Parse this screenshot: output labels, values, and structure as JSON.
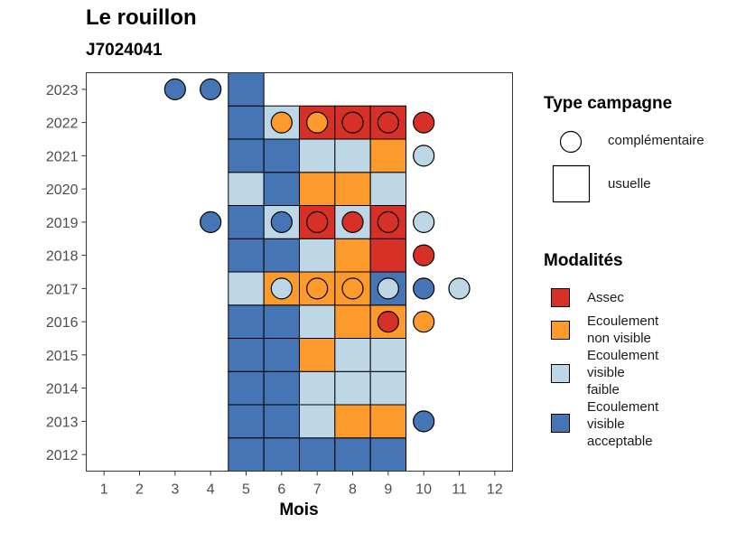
{
  "title": "Le rouillon",
  "subtitle": "J7024041",
  "chart_data": {
    "type": "heatmap",
    "xlabel": "Mois",
    "ylabel": "",
    "x_ticks": [
      1,
      2,
      3,
      4,
      5,
      6,
      7,
      8,
      9,
      10,
      11,
      12
    ],
    "y_ticks": [
      2012,
      2013,
      2014,
      2015,
      2016,
      2017,
      2018,
      2019,
      2020,
      2021,
      2022,
      2023
    ],
    "xlim": [
      0.5,
      12.5
    ],
    "ylim": [
      2011.5,
      2023.5
    ],
    "grid": false,
    "legend_position": "right",
    "modalities": [
      {
        "key": "assec",
        "label_lines": [
          "Assec"
        ],
        "color": "#d73027"
      },
      {
        "key": "ecoulement_non_visible",
        "label_lines": [
          "Ecoulement",
          "non visible"
        ],
        "color": "#fc9a2c"
      },
      {
        "key": "ecoulement_visible_faible",
        "label_lines": [
          "Ecoulement",
          "visible",
          "faible"
        ],
        "color": "#bdd7e7"
      },
      {
        "key": "ecoulement_visible_acceptable",
        "label_lines": [
          "Ecoulement",
          "visible",
          "acceptable"
        ],
        "color": "#4575b4"
      }
    ],
    "type_campagne": [
      {
        "key": "complementaire",
        "label": "complémentaire",
        "shape": "circle"
      },
      {
        "key": "usuelle",
        "label": "usuelle",
        "shape": "square"
      }
    ],
    "usuelle": [
      {
        "year": 2012,
        "month": 5,
        "modality": "ecoulement_visible_acceptable"
      },
      {
        "year": 2012,
        "month": 6,
        "modality": "ecoulement_visible_acceptable"
      },
      {
        "year": 2012,
        "month": 7,
        "modality": "ecoulement_visible_acceptable"
      },
      {
        "year": 2012,
        "month": 8,
        "modality": "ecoulement_visible_acceptable"
      },
      {
        "year": 2012,
        "month": 9,
        "modality": "ecoulement_visible_acceptable"
      },
      {
        "year": 2013,
        "month": 5,
        "modality": "ecoulement_visible_acceptable"
      },
      {
        "year": 2013,
        "month": 6,
        "modality": "ecoulement_visible_acceptable"
      },
      {
        "year": 2013,
        "month": 7,
        "modality": "ecoulement_visible_faible"
      },
      {
        "year": 2013,
        "month": 8,
        "modality": "ecoulement_non_visible"
      },
      {
        "year": 2013,
        "month": 9,
        "modality": "ecoulement_non_visible"
      },
      {
        "year": 2014,
        "month": 5,
        "modality": "ecoulement_visible_acceptable"
      },
      {
        "year": 2014,
        "month": 6,
        "modality": "ecoulement_visible_acceptable"
      },
      {
        "year": 2014,
        "month": 7,
        "modality": "ecoulement_visible_faible"
      },
      {
        "year": 2014,
        "month": 8,
        "modality": "ecoulement_visible_faible"
      },
      {
        "year": 2014,
        "month": 9,
        "modality": "ecoulement_visible_faible"
      },
      {
        "year": 2015,
        "month": 5,
        "modality": "ecoulement_visible_acceptable"
      },
      {
        "year": 2015,
        "month": 6,
        "modality": "ecoulement_visible_acceptable"
      },
      {
        "year": 2015,
        "month": 7,
        "modality": "ecoulement_non_visible"
      },
      {
        "year": 2015,
        "month": 8,
        "modality": "ecoulement_visible_faible"
      },
      {
        "year": 2015,
        "month": 9,
        "modality": "ecoulement_visible_faible"
      },
      {
        "year": 2016,
        "month": 5,
        "modality": "ecoulement_visible_acceptable"
      },
      {
        "year": 2016,
        "month": 6,
        "modality": "ecoulement_visible_acceptable"
      },
      {
        "year": 2016,
        "month": 7,
        "modality": "ecoulement_visible_faible"
      },
      {
        "year": 2016,
        "month": 8,
        "modality": "ecoulement_non_visible"
      },
      {
        "year": 2016,
        "month": 9,
        "modality": "ecoulement_non_visible"
      },
      {
        "year": 2017,
        "month": 5,
        "modality": "ecoulement_visible_faible"
      },
      {
        "year": 2017,
        "month": 6,
        "modality": "ecoulement_non_visible"
      },
      {
        "year": 2017,
        "month": 7,
        "modality": "ecoulement_non_visible"
      },
      {
        "year": 2017,
        "month": 8,
        "modality": "ecoulement_non_visible"
      },
      {
        "year": 2017,
        "month": 9,
        "modality": "ecoulement_visible_acceptable"
      },
      {
        "year": 2018,
        "month": 5,
        "modality": "ecoulement_visible_acceptable"
      },
      {
        "year": 2018,
        "month": 6,
        "modality": "ecoulement_visible_acceptable"
      },
      {
        "year": 2018,
        "month": 7,
        "modality": "ecoulement_visible_faible"
      },
      {
        "year": 2018,
        "month": 8,
        "modality": "ecoulement_non_visible"
      },
      {
        "year": 2018,
        "month": 9,
        "modality": "assec"
      },
      {
        "year": 2019,
        "month": 5,
        "modality": "ecoulement_visible_acceptable"
      },
      {
        "year": 2019,
        "month": 6,
        "modality": "ecoulement_visible_faible"
      },
      {
        "year": 2019,
        "month": 7,
        "modality": "assec"
      },
      {
        "year": 2019,
        "month": 8,
        "modality": "ecoulement_visible_faible"
      },
      {
        "year": 2019,
        "month": 9,
        "modality": "assec"
      },
      {
        "year": 2020,
        "month": 5,
        "modality": "ecoulement_visible_faible"
      },
      {
        "year": 2020,
        "month": 6,
        "modality": "ecoulement_visible_acceptable"
      },
      {
        "year": 2020,
        "month": 7,
        "modality": "ecoulement_non_visible"
      },
      {
        "year": 2020,
        "month": 8,
        "modality": "ecoulement_non_visible"
      },
      {
        "year": 2020,
        "month": 9,
        "modality": "ecoulement_visible_faible"
      },
      {
        "year": 2021,
        "month": 5,
        "modality": "ecoulement_visible_acceptable"
      },
      {
        "year": 2021,
        "month": 6,
        "modality": "ecoulement_visible_acceptable"
      },
      {
        "year": 2021,
        "month": 7,
        "modality": "ecoulement_visible_faible"
      },
      {
        "year": 2021,
        "month": 8,
        "modality": "ecoulement_visible_faible"
      },
      {
        "year": 2021,
        "month": 9,
        "modality": "ecoulement_non_visible"
      },
      {
        "year": 2022,
        "month": 5,
        "modality": "ecoulement_visible_acceptable"
      },
      {
        "year": 2022,
        "month": 6,
        "modality": "ecoulement_visible_faible"
      },
      {
        "year": 2022,
        "month": 7,
        "modality": "assec"
      },
      {
        "year": 2022,
        "month": 8,
        "modality": "assec"
      },
      {
        "year": 2022,
        "month": 9,
        "modality": "assec"
      },
      {
        "year": 2023,
        "month": 5,
        "modality": "ecoulement_visible_acceptable"
      }
    ],
    "complementaire": [
      {
        "year": 2023,
        "month": 3,
        "modality": "ecoulement_visible_acceptable"
      },
      {
        "year": 2023,
        "month": 4,
        "modality": "ecoulement_visible_acceptable"
      },
      {
        "year": 2022,
        "month": 6,
        "modality": "ecoulement_non_visible"
      },
      {
        "year": 2022,
        "month": 7,
        "modality": "ecoulement_non_visible"
      },
      {
        "year": 2022,
        "month": 8,
        "modality": "assec"
      },
      {
        "year": 2022,
        "month": 9,
        "modality": "assec"
      },
      {
        "year": 2022,
        "month": 10,
        "modality": "assec"
      },
      {
        "year": 2021,
        "month": 10,
        "modality": "ecoulement_visible_faible"
      },
      {
        "year": 2019,
        "month": 4,
        "modality": "ecoulement_visible_acceptable"
      },
      {
        "year": 2019,
        "month": 6,
        "modality": "ecoulement_visible_acceptable"
      },
      {
        "year": 2019,
        "month": 7,
        "modality": "assec"
      },
      {
        "year": 2019,
        "month": 8,
        "modality": "assec"
      },
      {
        "year": 2019,
        "month": 9,
        "modality": "assec"
      },
      {
        "year": 2019,
        "month": 10,
        "modality": "ecoulement_visible_faible"
      },
      {
        "year": 2018,
        "month": 10,
        "modality": "assec"
      },
      {
        "year": 2017,
        "month": 6,
        "modality": "ecoulement_visible_faible"
      },
      {
        "year": 2017,
        "month": 7,
        "modality": "ecoulement_non_visible"
      },
      {
        "year": 2017,
        "month": 8,
        "modality": "ecoulement_non_visible"
      },
      {
        "year": 2017,
        "month": 9,
        "modality": "ecoulement_visible_faible"
      },
      {
        "year": 2017,
        "month": 10,
        "modality": "ecoulement_visible_acceptable"
      },
      {
        "year": 2017,
        "month": 11,
        "modality": "ecoulement_visible_faible"
      },
      {
        "year": 2016,
        "month": 9,
        "modality": "assec"
      },
      {
        "year": 2016,
        "month": 10,
        "modality": "ecoulement_non_visible"
      },
      {
        "year": 2013,
        "month": 10,
        "modality": "ecoulement_visible_acceptable"
      }
    ]
  },
  "legend": {
    "type_title": "Type campagne",
    "modalites_title": "Modalités"
  }
}
